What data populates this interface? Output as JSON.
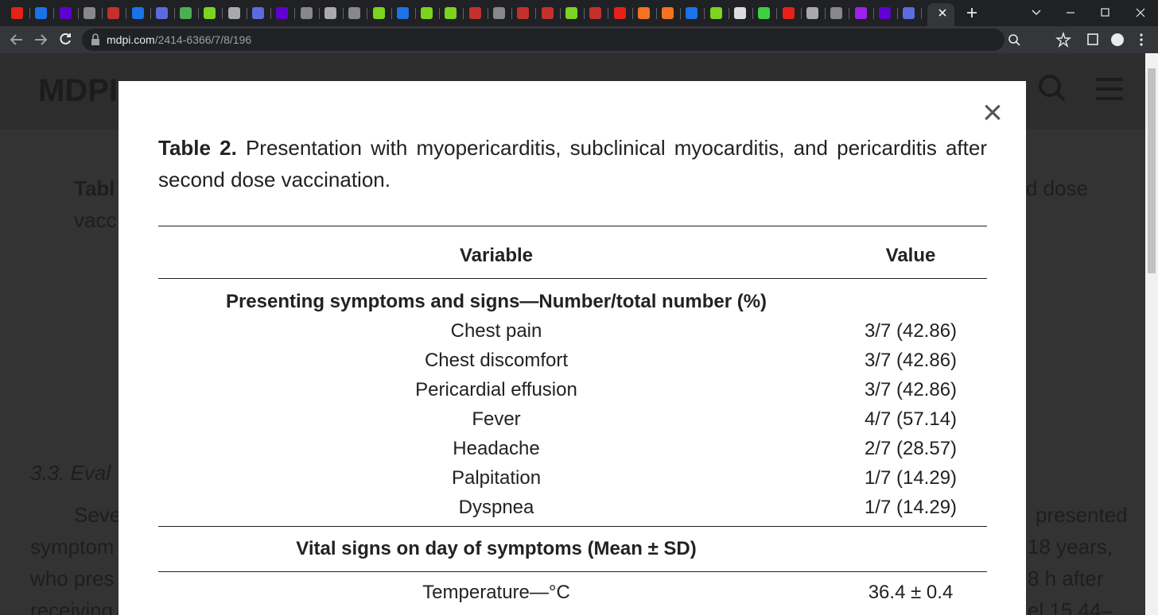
{
  "browser": {
    "url_host": "mdpi.com",
    "url_path": "/2414-6366/7/8/196"
  },
  "background": {
    "logo": "MDPI",
    "fragments": [
      "Tabl",
      "d dose",
      "vacc",
      "3.3. Eval",
      "Seve",
      "presented",
      "symptom",
      "18 years,",
      "who pres",
      "8 h after",
      "receiving",
      "el 15.44–"
    ]
  },
  "modal": {
    "close": "×",
    "caption": {
      "label": "Table 2.",
      "text": "Presentation with myopericarditis, subclinical myocarditis, and pericarditis after second dose vaccination."
    },
    "table": {
      "header": [
        "Variable",
        "Value"
      ],
      "sections": [
        {
          "heading": "Presenting symptoms and signs—Number/total number (%)",
          "rows": [
            [
              "Chest pain",
              "3/7 (42.86)"
            ],
            [
              "Chest discomfort",
              "3/7 (42.86)"
            ],
            [
              "Pericardial effusion",
              "3/7 (42.86)"
            ],
            [
              "Fever",
              "4/7 (57.14)"
            ],
            [
              "Headache",
              "2/7 (28.57)"
            ],
            [
              "Palpitation",
              "1/7 (14.29)"
            ],
            [
              "Dyspnea",
              "1/7 (14.29)"
            ]
          ]
        },
        {
          "heading": "Vital signs on day of symptoms (Mean ± SD)",
          "rows": [
            [
              "Temperature—°C",
              "36.4 ± 0.4"
            ]
          ]
        }
      ]
    }
  }
}
